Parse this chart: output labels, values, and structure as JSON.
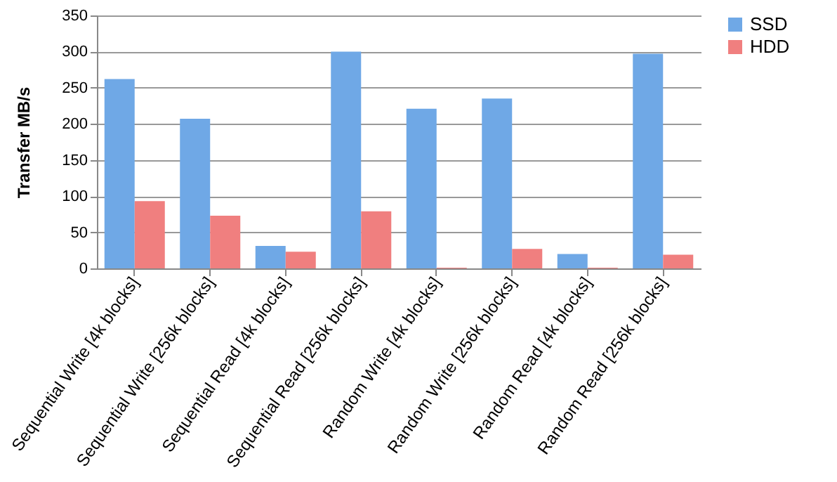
{
  "chart_data": {
    "type": "bar",
    "ylabel": "Transfer MB/s",
    "categories": [
      "Sequential Write [4k blocks]",
      "Sequential Write [256k blocks]",
      "Sequential Read [4k blocks]",
      "Sequential Read [256k blocks]",
      "Random Write [4k blocks]",
      "Random Write [256k blocks]",
      "Random Read [4k blocks]",
      "Random Read [256k blocks]"
    ],
    "series": [
      {
        "name": "SSD",
        "color": "#6fa8e6",
        "values": [
          262,
          207,
          31,
          300,
          221,
          235,
          20,
          297
        ]
      },
      {
        "name": "HDD",
        "color": "#f07f7f",
        "values": [
          93,
          73,
          23,
          79,
          1,
          27,
          1,
          19
        ]
      }
    ],
    "ylim": [
      0,
      350
    ],
    "yticks": [
      0,
      50,
      100,
      150,
      200,
      250,
      300,
      350
    ],
    "grid": "y",
    "legend": "right"
  }
}
